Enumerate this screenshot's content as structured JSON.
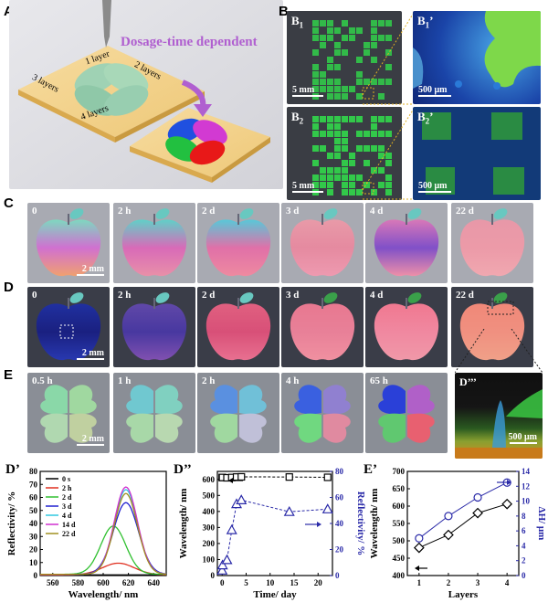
{
  "panel_letters": {
    "A": "A",
    "B": "B",
    "C": "C",
    "D": "D",
    "E": "E",
    "Dp": "D’",
    "Dpp": "D’’",
    "Ep": "E’"
  },
  "A": {
    "title": "Dosage-time dependent",
    "layers": [
      "1 layer",
      "2 layers",
      "3 layers",
      "4 layers"
    ]
  },
  "B": {
    "b1": "B",
    "b1sub": "1",
    "b2": "B",
    "b2sub": "2",
    "b1p": "B",
    "b1psub": "1",
    "b1pprime": "’",
    "b2p": "B",
    "b2psub": "2",
    "b2pprime": "’",
    "scale_mm": "5 mm",
    "scale_um": "500 μm"
  },
  "C": {
    "times": [
      "0",
      "2 h",
      "2 d",
      "3 d",
      "4 d",
      "22 d"
    ],
    "scale": "2 mm"
  },
  "D": {
    "times": [
      "0",
      "2 h",
      "2 d",
      "3 d",
      "4 d",
      "22 d"
    ],
    "scale": "2 mm"
  },
  "E": {
    "times": [
      "0.5 h",
      "1 h",
      "2 h",
      "4 h",
      "65 h"
    ],
    "scale": "2 mm"
  },
  "Dppp": {
    "label": "D’’’",
    "scale": "500 μm"
  },
  "colors": {
    "accent": "#b05fd0",
    "blue_axis": "#2a2aa8",
    "black": "#000000"
  },
  "chart_data": [
    {
      "type": "line",
      "xlabel": "Wavelength/ nm",
      "ylabel": "Reflectivity/ %",
      "xlim": [
        550,
        650
      ],
      "ylim": [
        0,
        80
      ],
      "xticks": [
        560,
        580,
        600,
        620,
        640
      ],
      "yticks": [
        0,
        10,
        20,
        30,
        40,
        50,
        60,
        70,
        80
      ],
      "series": [
        {
          "name": "0 s",
          "color": "#000000",
          "peak": 620,
          "amp": 0,
          "width": 15,
          "base": 0.5
        },
        {
          "name": "2 h",
          "color": "#e03020",
          "peak": 612,
          "amp": 9,
          "width": 18,
          "base": 0.5
        },
        {
          "name": "2 d",
          "color": "#30c030",
          "peak": 608,
          "amp": 37,
          "width": 14,
          "base": 1
        },
        {
          "name": "3 d",
          "color": "#2020d0",
          "peak": 618,
          "amp": 55,
          "width": 14,
          "base": 1
        },
        {
          "name": "4 d",
          "color": "#30c8e0",
          "peak": 618,
          "amp": 65,
          "width": 13,
          "base": 1
        },
        {
          "name": "14 d",
          "color": "#d030d0",
          "peak": 618,
          "amp": 67,
          "width": 13,
          "base": 1
        },
        {
          "name": "22 d",
          "color": "#a09020",
          "peak": 618,
          "amp": 62,
          "width": 13,
          "base": 1
        }
      ]
    },
    {
      "type": "line",
      "xlabel": "Time/ day",
      "ylabel": "Wavelength/ nm",
      "ylabel2": "Reflectivity/ %",
      "xlim": [
        -1,
        23
      ],
      "ylim": [
        0,
        650
      ],
      "ylim2": [
        0,
        80
      ],
      "xticks": [
        0,
        5,
        10,
        15,
        20
      ],
      "yticks": [
        0,
        100,
        200,
        300,
        400,
        500,
        600
      ],
      "yticks2": [
        0,
        20,
        40,
        60,
        80
      ],
      "series": [
        {
          "name": "Wavelength",
          "axis": "left",
          "color": "#000000",
          "marker": "square",
          "x": [
            0,
            0.08,
            1,
            2,
            3,
            4,
            14,
            22
          ],
          "y": [
            612,
            612,
            610,
            612,
            615,
            616,
            615,
            613
          ]
        },
        {
          "name": "Reflectivity",
          "axis": "right",
          "color": "#2a2aa8",
          "marker": "triangle",
          "x": [
            0,
            0.08,
            1,
            2,
            3,
            4,
            14,
            22
          ],
          "y": [
            4,
            8,
            12,
            35,
            55,
            58,
            49,
            51
          ]
        }
      ]
    },
    {
      "type": "line",
      "xlabel": "Layers",
      "ylabel": "Wavelength/ nm",
      "ylabel2": "ΔH/ μm",
      "xlim": [
        0.6,
        4.4
      ],
      "ylim": [
        400,
        700
      ],
      "ylim2": [
        0,
        14
      ],
      "xticks": [
        1,
        2,
        3,
        4
      ],
      "yticks": [
        400,
        450,
        500,
        550,
        600,
        650,
        700
      ],
      "yticks2": [
        0,
        2,
        4,
        6,
        8,
        10,
        12,
        14
      ],
      "series": [
        {
          "name": "Wavelength",
          "axis": "left",
          "color": "#000000",
          "marker": "diamond",
          "x": [
            1,
            2,
            3,
            4
          ],
          "y": [
            480,
            517,
            580,
            606
          ]
        },
        {
          "name": "ΔH",
          "axis": "right",
          "color": "#2a2aa8",
          "marker": "circle",
          "x": [
            1,
            2,
            3,
            4
          ],
          "y": [
            5.0,
            8.0,
            10.5,
            12.5
          ]
        }
      ]
    }
  ]
}
